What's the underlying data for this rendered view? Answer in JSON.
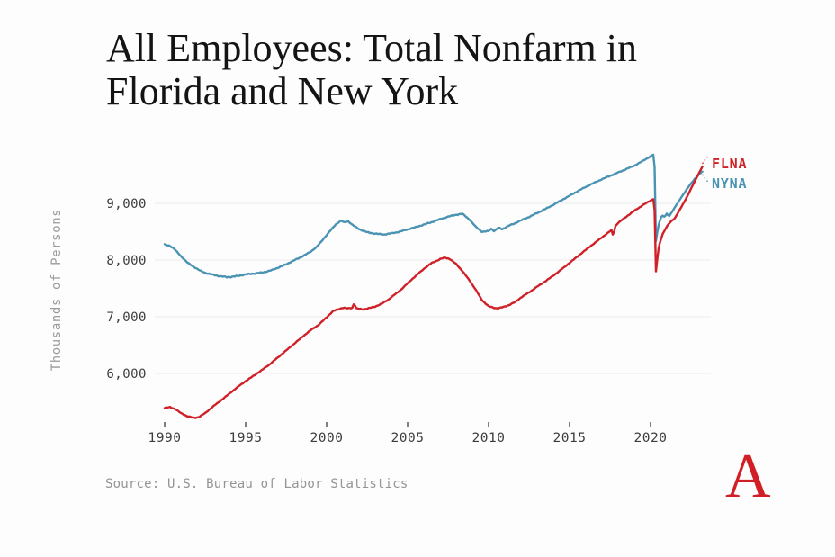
{
  "title": {
    "line1": "All Employees: Total Nonfarm in",
    "line2": "Florida and New York"
  },
  "footer": {
    "source": "Source: U.S. Bureau of Labor Statistics",
    "logo_letter": "A"
  },
  "chart_data": {
    "type": "line",
    "title": "All Employees: Total Nonfarm in Florida and New York",
    "xlabel": "",
    "ylabel": "Thousands of Persons",
    "unit": "thousands of persons, monthly",
    "x_range": [
      1990,
      2023.2
    ],
    "y_axis_range_shown": [
      6000,
      9000
    ],
    "grid": "horizontal-only",
    "legend_position": "right of line ends, connected by dotted leaders",
    "x_ticks": [
      1990,
      1995,
      2000,
      2005,
      2010,
      2015,
      2020
    ],
    "x_tick_labels": [
      "1990",
      "1995",
      "2000",
      "2005",
      "2010",
      "2015",
      "2020"
    ],
    "y_ticks": [
      9000,
      8000,
      7000,
      6000
    ],
    "y_tick_labels": [
      "9,000",
      "8,000",
      "7,000",
      "6,000"
    ],
    "colors": {
      "flna": "#d02128",
      "nyna": "#4a93b2",
      "grid": "#eaeaea",
      "tick_mark": "#4a4a4a",
      "tick_label": "#3d3d3d",
      "muted_text": "#9b9b9b",
      "logo_red": "#d11f26"
    },
    "series": [
      {
        "id": "FLNA",
        "label": "FLNA",
        "color_key": "flna",
        "points": [
          [
            1990.0,
            5390
          ],
          [
            1990.33,
            5405
          ],
          [
            1990.67,
            5370
          ],
          [
            1991.0,
            5300
          ],
          [
            1991.4,
            5245
          ],
          [
            1991.8,
            5215
          ],
          [
            1992.1,
            5230
          ],
          [
            1992.5,
            5300
          ],
          [
            1993.0,
            5420
          ],
          [
            1993.5,
            5530
          ],
          [
            1994.0,
            5645
          ],
          [
            1994.5,
            5760
          ],
          [
            1995.0,
            5865
          ],
          [
            1995.5,
            5960
          ],
          [
            1996.0,
            6060
          ],
          [
            1996.5,
            6165
          ],
          [
            1997.0,
            6285
          ],
          [
            1997.5,
            6405
          ],
          [
            1998.0,
            6525
          ],
          [
            1998.5,
            6645
          ],
          [
            1999.0,
            6760
          ],
          [
            1999.5,
            6855
          ],
          [
            2000.0,
            6990
          ],
          [
            2000.4,
            7100
          ],
          [
            2000.7,
            7130
          ],
          [
            2001.0,
            7160
          ],
          [
            2001.3,
            7145
          ],
          [
            2001.6,
            7160
          ],
          [
            2001.7,
            7250
          ],
          [
            2001.8,
            7150
          ],
          [
            2002.2,
            7130
          ],
          [
            2002.6,
            7150
          ],
          [
            2003.0,
            7180
          ],
          [
            2003.4,
            7230
          ],
          [
            2003.8,
            7300
          ],
          [
            2004.2,
            7390
          ],
          [
            2004.6,
            7480
          ],
          [
            2005.0,
            7590
          ],
          [
            2005.5,
            7720
          ],
          [
            2006.0,
            7845
          ],
          [
            2006.5,
            7950
          ],
          [
            2007.0,
            8015
          ],
          [
            2007.3,
            8045
          ],
          [
            2007.6,
            8020
          ],
          [
            2008.0,
            7930
          ],
          [
            2008.4,
            7800
          ],
          [
            2008.8,
            7650
          ],
          [
            2009.2,
            7480
          ],
          [
            2009.6,
            7290
          ],
          [
            2010.0,
            7185
          ],
          [
            2010.3,
            7160
          ],
          [
            2010.6,
            7150
          ],
          [
            2010.9,
            7170
          ],
          [
            2011.3,
            7210
          ],
          [
            2011.7,
            7270
          ],
          [
            2012.0,
            7340
          ],
          [
            2012.5,
            7430
          ],
          [
            2013.0,
            7530
          ],
          [
            2013.5,
            7625
          ],
          [
            2014.0,
            7725
          ],
          [
            2014.5,
            7835
          ],
          [
            2015.0,
            7950
          ],
          [
            2015.5,
            8065
          ],
          [
            2016.0,
            8180
          ],
          [
            2016.5,
            8290
          ],
          [
            2017.0,
            8400
          ],
          [
            2017.3,
            8465
          ],
          [
            2017.6,
            8530
          ],
          [
            2017.7,
            8410
          ],
          [
            2017.8,
            8590
          ],
          [
            2018.0,
            8655
          ],
          [
            2018.5,
            8765
          ],
          [
            2019.0,
            8870
          ],
          [
            2019.5,
            8965
          ],
          [
            2020.0,
            9050
          ],
          [
            2020.17,
            9075
          ],
          [
            2020.25,
            8880
          ],
          [
            2020.33,
            7790
          ],
          [
            2020.42,
            8030
          ],
          [
            2020.5,
            8210
          ],
          [
            2020.6,
            8330
          ],
          [
            2020.75,
            8460
          ],
          [
            2020.9,
            8540
          ],
          [
            2021.1,
            8630
          ],
          [
            2021.3,
            8690
          ],
          [
            2021.5,
            8740
          ],
          [
            2021.75,
            8860
          ],
          [
            2022.0,
            8985
          ],
          [
            2022.25,
            9115
          ],
          [
            2022.5,
            9260
          ],
          [
            2022.75,
            9400
          ],
          [
            2023.0,
            9540
          ],
          [
            2023.2,
            9650
          ]
        ]
      },
      {
        "id": "NYNA",
        "label": "NYNA",
        "color_key": "nyna",
        "points": [
          [
            1990.0,
            8270
          ],
          [
            1990.3,
            8255
          ],
          [
            1990.6,
            8195
          ],
          [
            1991.0,
            8070
          ],
          [
            1991.4,
            7955
          ],
          [
            1991.8,
            7880
          ],
          [
            1992.2,
            7810
          ],
          [
            1992.6,
            7765
          ],
          [
            1993.0,
            7740
          ],
          [
            1993.4,
            7715
          ],
          [
            1993.8,
            7700
          ],
          [
            1994.2,
            7705
          ],
          [
            1994.6,
            7725
          ],
          [
            1995.0,
            7745
          ],
          [
            1995.4,
            7760
          ],
          [
            1995.8,
            7770
          ],
          [
            1996.2,
            7790
          ],
          [
            1996.6,
            7820
          ],
          [
            1997.0,
            7865
          ],
          [
            1997.5,
            7925
          ],
          [
            1998.0,
            7995
          ],
          [
            1998.5,
            8065
          ],
          [
            1999.0,
            8145
          ],
          [
            1999.4,
            8235
          ],
          [
            1999.8,
            8370
          ],
          [
            2000.2,
            8510
          ],
          [
            2000.6,
            8640
          ],
          [
            2000.9,
            8695
          ],
          [
            2001.1,
            8660
          ],
          [
            2001.3,
            8690
          ],
          [
            2001.6,
            8620
          ],
          [
            2002.0,
            8545
          ],
          [
            2002.5,
            8490
          ],
          [
            2003.0,
            8465
          ],
          [
            2003.5,
            8450
          ],
          [
            2004.0,
            8470
          ],
          [
            2004.5,
            8500
          ],
          [
            2005.0,
            8540
          ],
          [
            2005.5,
            8580
          ],
          [
            2006.0,
            8625
          ],
          [
            2006.5,
            8670
          ],
          [
            2007.0,
            8720
          ],
          [
            2007.5,
            8765
          ],
          [
            2008.0,
            8800
          ],
          [
            2008.4,
            8815
          ],
          [
            2008.8,
            8720
          ],
          [
            2009.2,
            8590
          ],
          [
            2009.6,
            8495
          ],
          [
            2010.0,
            8510
          ],
          [
            2010.15,
            8555
          ],
          [
            2010.35,
            8510
          ],
          [
            2010.6,
            8570
          ],
          [
            2010.85,
            8545
          ],
          [
            2011.2,
            8600
          ],
          [
            2011.6,
            8645
          ],
          [
            2012.0,
            8700
          ],
          [
            2012.5,
            8760
          ],
          [
            2013.0,
            8830
          ],
          [
            2013.5,
            8900
          ],
          [
            2014.0,
            8975
          ],
          [
            2014.5,
            9055
          ],
          [
            2015.0,
            9135
          ],
          [
            2015.5,
            9215
          ],
          [
            2016.0,
            9290
          ],
          [
            2016.5,
            9360
          ],
          [
            2017.0,
            9425
          ],
          [
            2017.5,
            9485
          ],
          [
            2018.0,
            9545
          ],
          [
            2018.5,
            9605
          ],
          [
            2019.0,
            9665
          ],
          [
            2019.5,
            9745
          ],
          [
            2020.0,
            9830
          ],
          [
            2020.17,
            9860
          ],
          [
            2020.25,
            9640
          ],
          [
            2020.33,
            8330
          ],
          [
            2020.45,
            8560
          ],
          [
            2020.55,
            8680
          ],
          [
            2020.7,
            8790
          ],
          [
            2020.85,
            8760
          ],
          [
            2021.0,
            8810
          ],
          [
            2021.15,
            8775
          ],
          [
            2021.3,
            8840
          ],
          [
            2021.5,
            8930
          ],
          [
            2021.75,
            9040
          ],
          [
            2022.0,
            9150
          ],
          [
            2022.25,
            9255
          ],
          [
            2022.5,
            9350
          ],
          [
            2022.75,
            9440
          ],
          [
            2023.0,
            9515
          ],
          [
            2023.2,
            9560
          ]
        ]
      }
    ]
  }
}
